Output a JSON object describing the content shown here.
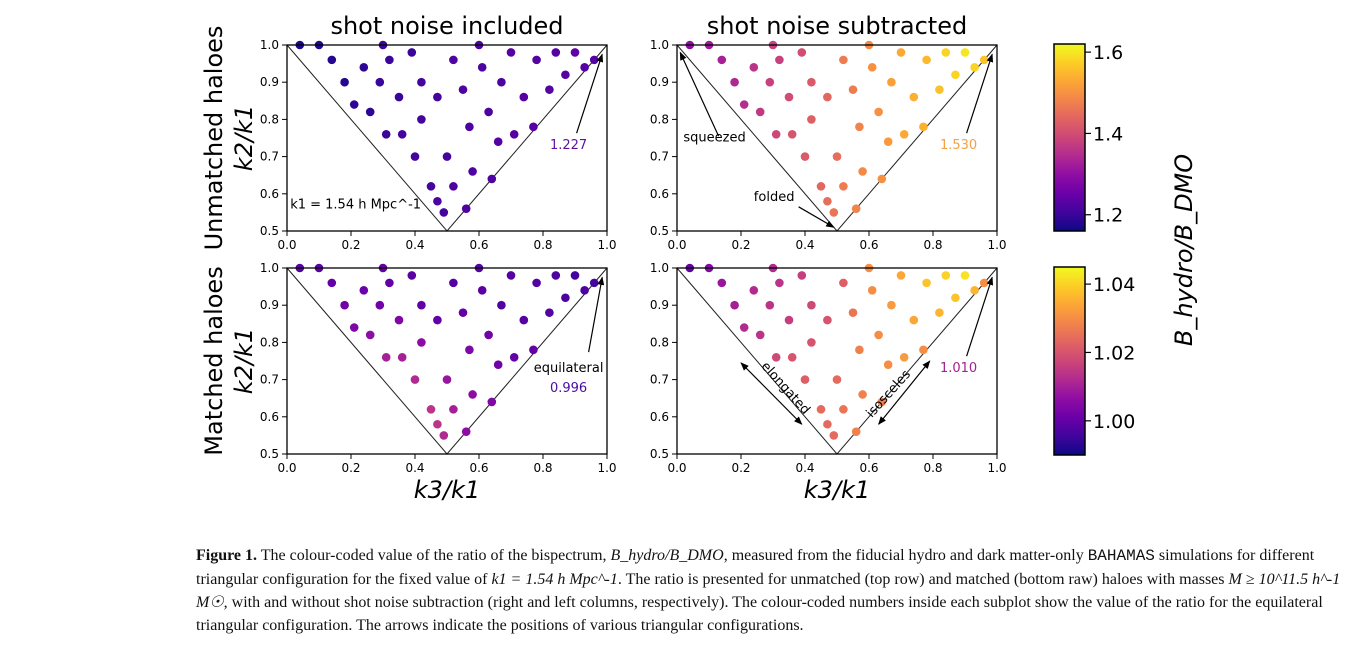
{
  "chart_data": {
    "type": "scatter",
    "xlabel": "k3/k1",
    "ylabel": "k2/k1",
    "xlim": [
      0.0,
      1.0
    ],
    "ylim": [
      0.5,
      1.0
    ],
    "xticks": [
      "0.0",
      "0.2",
      "0.4",
      "0.6",
      "0.8",
      "1.0"
    ],
    "yticks": [
      "0.5",
      "0.6",
      "0.7",
      "0.8",
      "0.9",
      "1.0"
    ],
    "colormap": "plasma",
    "colorbar_label": "B_hydro/B_DMO",
    "columns": [
      "shot noise included",
      "shot noise subtracted"
    ],
    "rows": [
      "Unmatched haloes",
      "Matched haloes"
    ],
    "k1_label": "k1 = 1.54 h Mpc^-1",
    "points_k3": [
      0.04,
      0.1,
      0.14,
      0.18,
      0.21,
      0.24,
      0.26,
      0.29,
      0.31,
      0.32,
      0.35,
      0.36,
      0.39,
      0.4,
      0.42,
      0.42,
      0.45,
      0.47,
      0.47,
      0.49,
      0.5,
      0.52,
      0.52,
      0.55,
      0.56,
      0.57,
      0.58,
      0.61,
      0.63,
      0.64,
      0.66,
      0.67,
      0.7,
      0.71,
      0.74,
      0.77,
      0.78,
      0.82,
      0.84,
      0.87,
      0.9,
      0.93,
      0.96,
      0.6,
      0.3
    ],
    "points_k2": [
      1.0,
      1.0,
      0.96,
      0.9,
      0.84,
      0.94,
      0.82,
      0.9,
      0.76,
      0.96,
      0.86,
      0.76,
      0.98,
      0.7,
      0.9,
      0.8,
      0.62,
      0.86,
      0.58,
      0.55,
      0.7,
      0.96,
      0.62,
      0.88,
      0.56,
      0.78,
      0.66,
      0.94,
      0.82,
      0.64,
      0.74,
      0.9,
      0.98,
      0.76,
      0.86,
      0.78,
      0.96,
      0.88,
      0.98,
      0.92,
      0.98,
      0.94,
      0.96,
      1.0,
      1.0
    ],
    "panels": [
      {
        "id": "unmatched-included",
        "title": "shot noise included",
        "row_label": "Unmatched haloes",
        "colorbar": 0,
        "equilateral": "1.227",
        "equilateral_color": "#5c12a0",
        "values": [
          1.17,
          1.18,
          1.18,
          1.18,
          1.19,
          1.19,
          1.19,
          1.2,
          1.2,
          1.2,
          1.2,
          1.21,
          1.2,
          1.21,
          1.21,
          1.21,
          1.21,
          1.21,
          1.22,
          1.21,
          1.21,
          1.22,
          1.22,
          1.22,
          1.22,
          1.22,
          1.22,
          1.22,
          1.22,
          1.22,
          1.23,
          1.22,
          1.23,
          1.23,
          1.23,
          1.23,
          1.23,
          1.23,
          1.23,
          1.23,
          1.24,
          1.23,
          1.23,
          1.22,
          1.2
        ]
      },
      {
        "id": "unmatched-subtracted",
        "title": "shot noise subtracted",
        "colorbar": 0,
        "equilateral": "1.530",
        "equilateral_color": "#f4a142",
        "values": [
          1.3,
          1.32,
          1.33,
          1.34,
          1.35,
          1.36,
          1.37,
          1.38,
          1.39,
          1.38,
          1.4,
          1.41,
          1.4,
          1.42,
          1.42,
          1.43,
          1.44,
          1.44,
          1.45,
          1.46,
          1.45,
          1.47,
          1.47,
          1.47,
          1.48,
          1.48,
          1.49,
          1.5,
          1.5,
          1.5,
          1.51,
          1.52,
          1.53,
          1.53,
          1.54,
          1.54,
          1.55,
          1.56,
          1.58,
          1.58,
          1.6,
          1.58,
          1.56,
          1.49,
          1.38
        ]
      },
      {
        "id": "matched-included",
        "row_label": "Matched haloes",
        "colorbar": 1,
        "equilateral": "0.996",
        "equilateral_color": "#4a0ca4",
        "values": [
          0.998,
          0.999,
          1.0,
          1.002,
          1.004,
          1.001,
          1.006,
          1.002,
          1.01,
          1.0,
          1.004,
          1.01,
          0.999,
          1.012,
          1.0,
          1.006,
          1.014,
          1.0,
          1.014,
          1.012,
          1.008,
          0.998,
          1.01,
          1.0,
          1.006,
          1.004,
          1.006,
          0.999,
          1.002,
          1.004,
          1.002,
          0.998,
          0.998,
          1.0,
          0.998,
          1.0,
          0.998,
          0.998,
          0.997,
          0.997,
          0.996,
          0.997,
          0.996,
          0.998,
          1.0
        ]
      },
      {
        "id": "matched-subtracted",
        "colorbar": 1,
        "equilateral": "1.010",
        "equilateral_color": "#a3218e",
        "values": [
          1.0,
          1.005,
          1.008,
          1.01,
          1.012,
          1.012,
          1.014,
          1.014,
          1.018,
          1.014,
          1.016,
          1.02,
          1.016,
          1.022,
          1.018,
          1.02,
          1.024,
          1.02,
          1.024,
          1.024,
          1.024,
          1.022,
          1.026,
          1.026,
          1.028,
          1.028,
          1.028,
          1.03,
          1.03,
          1.028,
          1.03,
          1.032,
          1.034,
          1.032,
          1.034,
          1.03,
          1.038,
          1.036,
          1.04,
          1.038,
          1.042,
          1.036,
          1.03,
          1.03,
          1.012
        ]
      }
    ],
    "colorbars": [
      {
        "range": [
          1.16,
          1.62
        ],
        "ticks": [
          "1.2",
          "1.4",
          "1.6"
        ]
      },
      {
        "range": [
          0.99,
          1.045
        ],
        "ticks": [
          "1.00",
          "1.02",
          "1.04"
        ]
      }
    ],
    "annotations": {
      "squeezed": "squeezed",
      "folded": "folded",
      "equilateral": "equilateral",
      "elongated": "elongated",
      "isosceles": "isosceles"
    }
  },
  "caption": {
    "label": "Figure 1.",
    "p1": " The colour-coded value of the ratio of the bispectrum, ",
    "ratio": "B_hydro/B_DMO",
    "p2": ", measured from the fiducial hydro and dark matter-only ",
    "sim": "BAHAMAS",
    "p3": " simulations for different triangular configuration for the fixed value of ",
    "k1": "k1 = 1.54 h Mpc^-1",
    "p4": ". The ratio is presented for unmatched (top row) and matched (bottom raw) haloes with masses ",
    "mass": "M ≥ 10^11.5 h^-1 M☉",
    "p5": ", with and without shot noise subtraction (right and left columns, respectively). The colour-coded numbers inside each subplot show the value of the ratio for the equilateral triangular configuration. The arrows indicate the positions of various triangular configurations."
  }
}
